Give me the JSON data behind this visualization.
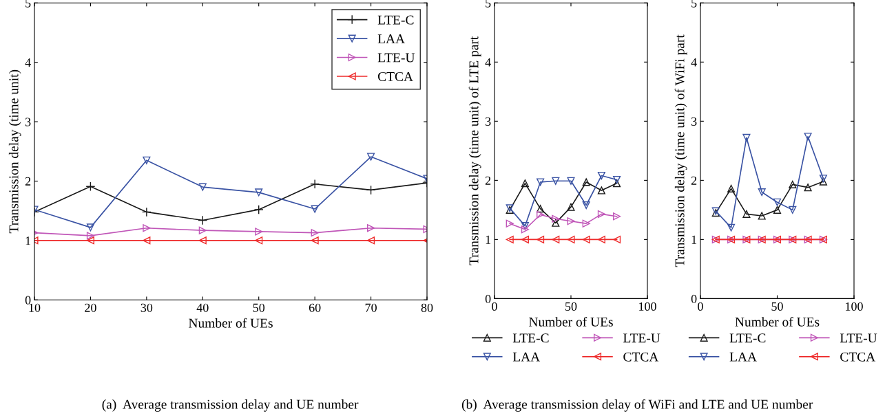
{
  "chart_data": [
    {
      "type": "line",
      "xlabel": "Number of UEs",
      "ylabel": "Transmission delay (time unit)",
      "x": [
        10,
        20,
        30,
        40,
        50,
        60,
        70,
        80
      ],
      "xlim": [
        10,
        80
      ],
      "xticks": [
        10,
        20,
        30,
        40,
        50,
        60,
        70,
        80
      ],
      "ylim": [
        0,
        5
      ],
      "yticks": [
        0,
        1,
        2,
        3,
        4,
        5
      ],
      "grid": false,
      "legend": "top right",
      "annotations": [
        "(a)  Average transmission delay and UE number"
      ],
      "series": [
        {
          "name": "LTE-C",
          "color": "#1a1a1a",
          "marker": "cross",
          "values": [
            1.48,
            1.91,
            1.48,
            1.34,
            1.52,
            1.95,
            1.85,
            1.97
          ]
        },
        {
          "name": "LAA",
          "color": "#3a53a4",
          "marker": "triangle_down",
          "values": [
            1.52,
            1.22,
            2.35,
            1.9,
            1.81,
            1.53,
            2.41,
            2.04
          ]
        },
        {
          "name": "LTE-U",
          "color": "#c056b8",
          "marker": "triangle_right",
          "values": [
            1.13,
            1.08,
            1.21,
            1.17,
            1.15,
            1.13,
            1.21,
            1.19
          ]
        },
        {
          "name": "CTCA",
          "color": "#ee2a2a",
          "marker": "triangle_left",
          "values": [
            1,
            1,
            1,
            1,
            1,
            1,
            1,
            1
          ]
        }
      ]
    },
    {
      "type": "line",
      "xlabel": "Number of UEs",
      "ylabel": "Transmission delay (time unit) of LTE part",
      "x": [
        10,
        20,
        30,
        40,
        50,
        60,
        70,
        80
      ],
      "xlim": [
        0,
        100
      ],
      "xticks": [
        0,
        50,
        100
      ],
      "ylim": [
        0,
        5
      ],
      "yticks": [
        0,
        1,
        2,
        3,
        4,
        5
      ],
      "grid": false,
      "legend": "bottom",
      "annotations": [
        "(b)  Average transmission delay of WiFi and LTE and UE number"
      ],
      "series": [
        {
          "name": "LTE-C",
          "color": "#1a1a1a",
          "marker": "triangle",
          "values": [
            1.5,
            1.95,
            1.52,
            1.28,
            1.55,
            1.97,
            1.83,
            1.95
          ]
        },
        {
          "name": "LAA",
          "color": "#3a53a4",
          "marker": "triangle_down",
          "values": [
            1.53,
            1.23,
            1.97,
            1.99,
            1.99,
            1.58,
            2.08,
            2.01
          ]
        },
        {
          "name": "LTE-U",
          "color": "#c056b8",
          "marker": "triangle_right",
          "values": [
            1.27,
            1.17,
            1.42,
            1.35,
            1.31,
            1.27,
            1.43,
            1.39
          ]
        },
        {
          "name": "CTCA",
          "color": "#ee2a2a",
          "marker": "triangle_left",
          "values": [
            1,
            1,
            1,
            1,
            1,
            1,
            1,
            1
          ]
        }
      ]
    },
    {
      "type": "line",
      "xlabel": "Number of UEs",
      "ylabel": "Transmission delay (time unit) of WiFi part",
      "x": [
        10,
        20,
        30,
        40,
        50,
        60,
        70,
        80
      ],
      "xlim": [
        0,
        100
      ],
      "xticks": [
        0,
        50,
        100
      ],
      "ylim": [
        0,
        5
      ],
      "yticks": [
        0,
        1,
        2,
        3,
        4,
        5
      ],
      "grid": false,
      "legend": "bottom",
      "series": [
        {
          "name": "LTE-C",
          "color": "#1a1a1a",
          "marker": "triangle",
          "values": [
            1.45,
            1.86,
            1.43,
            1.4,
            1.5,
            1.93,
            1.88,
            1.98
          ]
        },
        {
          "name": "LAA",
          "color": "#3a53a4",
          "marker": "triangle_down",
          "values": [
            1.48,
            1.2,
            2.72,
            1.8,
            1.63,
            1.5,
            2.74,
            2.03
          ]
        },
        {
          "name": "LTE-U",
          "color": "#c056b8",
          "marker": "triangle_right",
          "values": [
            1,
            1,
            1,
            1,
            1,
            1,
            1,
            1
          ]
        },
        {
          "name": "CTCA",
          "color": "#ee2a2a",
          "marker": "triangle_left",
          "values": [
            1,
            1,
            1,
            1,
            1,
            1,
            1,
            1
          ]
        }
      ]
    }
  ]
}
